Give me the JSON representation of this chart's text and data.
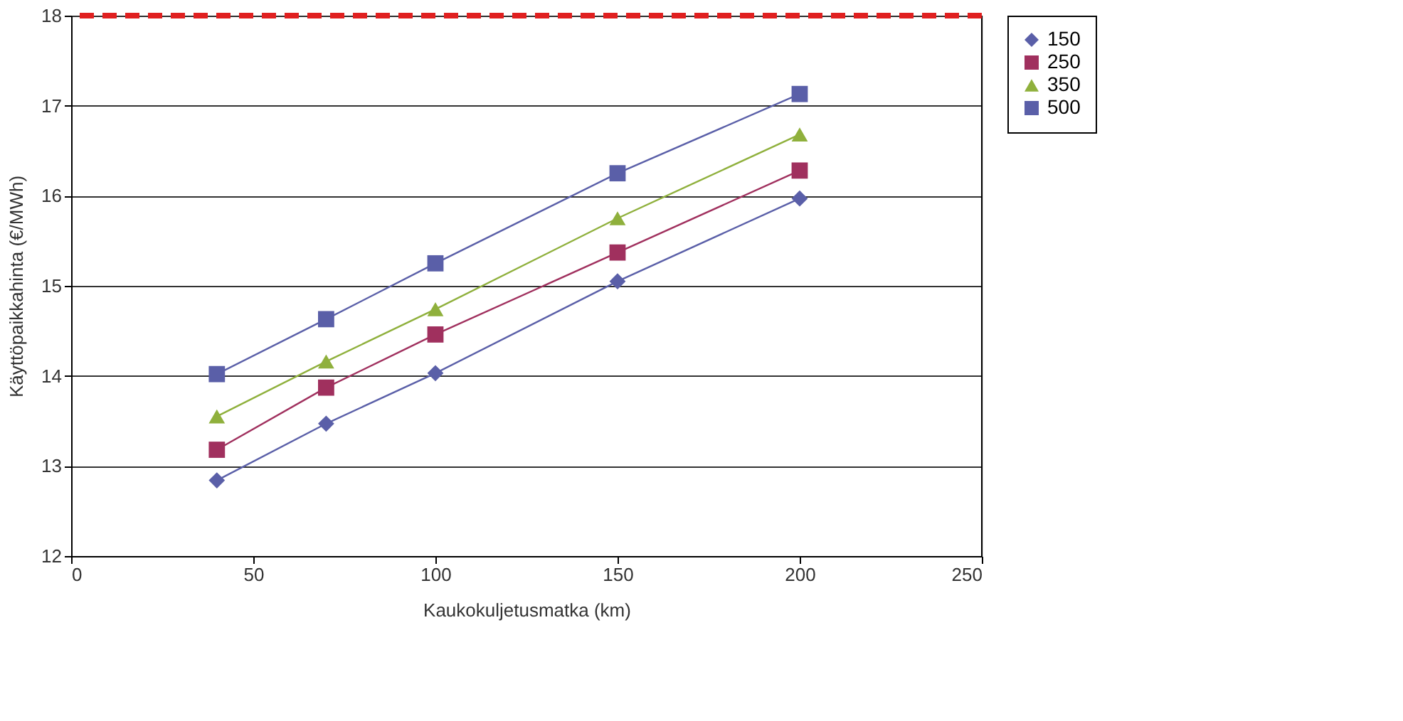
{
  "chart_data": {
    "type": "line",
    "xlabel": "Kaukokuljetusmatka (km)",
    "ylabel": "Käyttöpaikkahinta (€/MWh)",
    "x": [
      40,
      70,
      100,
      150,
      200
    ],
    "series": [
      {
        "name": "150",
        "color": "#5a5fa8",
        "marker": "diamond",
        "values": [
          12.84,
          13.47,
          14.03,
          15.05,
          15.97
        ]
      },
      {
        "name": "250",
        "color": "#a0305e",
        "marker": "square",
        "values": [
          13.18,
          13.87,
          14.46,
          15.37,
          16.28
        ]
      },
      {
        "name": "350",
        "color": "#8fb03c",
        "marker": "triangle",
        "values": [
          13.55,
          14.16,
          14.74,
          15.75,
          16.68
        ]
      },
      {
        "name": "500",
        "color": "#5a5fa8",
        "marker": "square",
        "values": [
          14.02,
          14.63,
          15.25,
          16.25,
          17.13
        ]
      }
    ],
    "xlim": [
      0,
      250
    ],
    "xticks": [
      0,
      50,
      100,
      150,
      200,
      250
    ],
    "ylim": [
      12,
      18
    ],
    "yticks": [
      12,
      13,
      14,
      15,
      16,
      17,
      18
    ],
    "ref_lines": [
      {
        "axis": "y",
        "value": 18,
        "color": "#e02020",
        "line_style": "dashed"
      }
    ],
    "grid": "y",
    "legend": "right",
    "line_style": "solid"
  }
}
